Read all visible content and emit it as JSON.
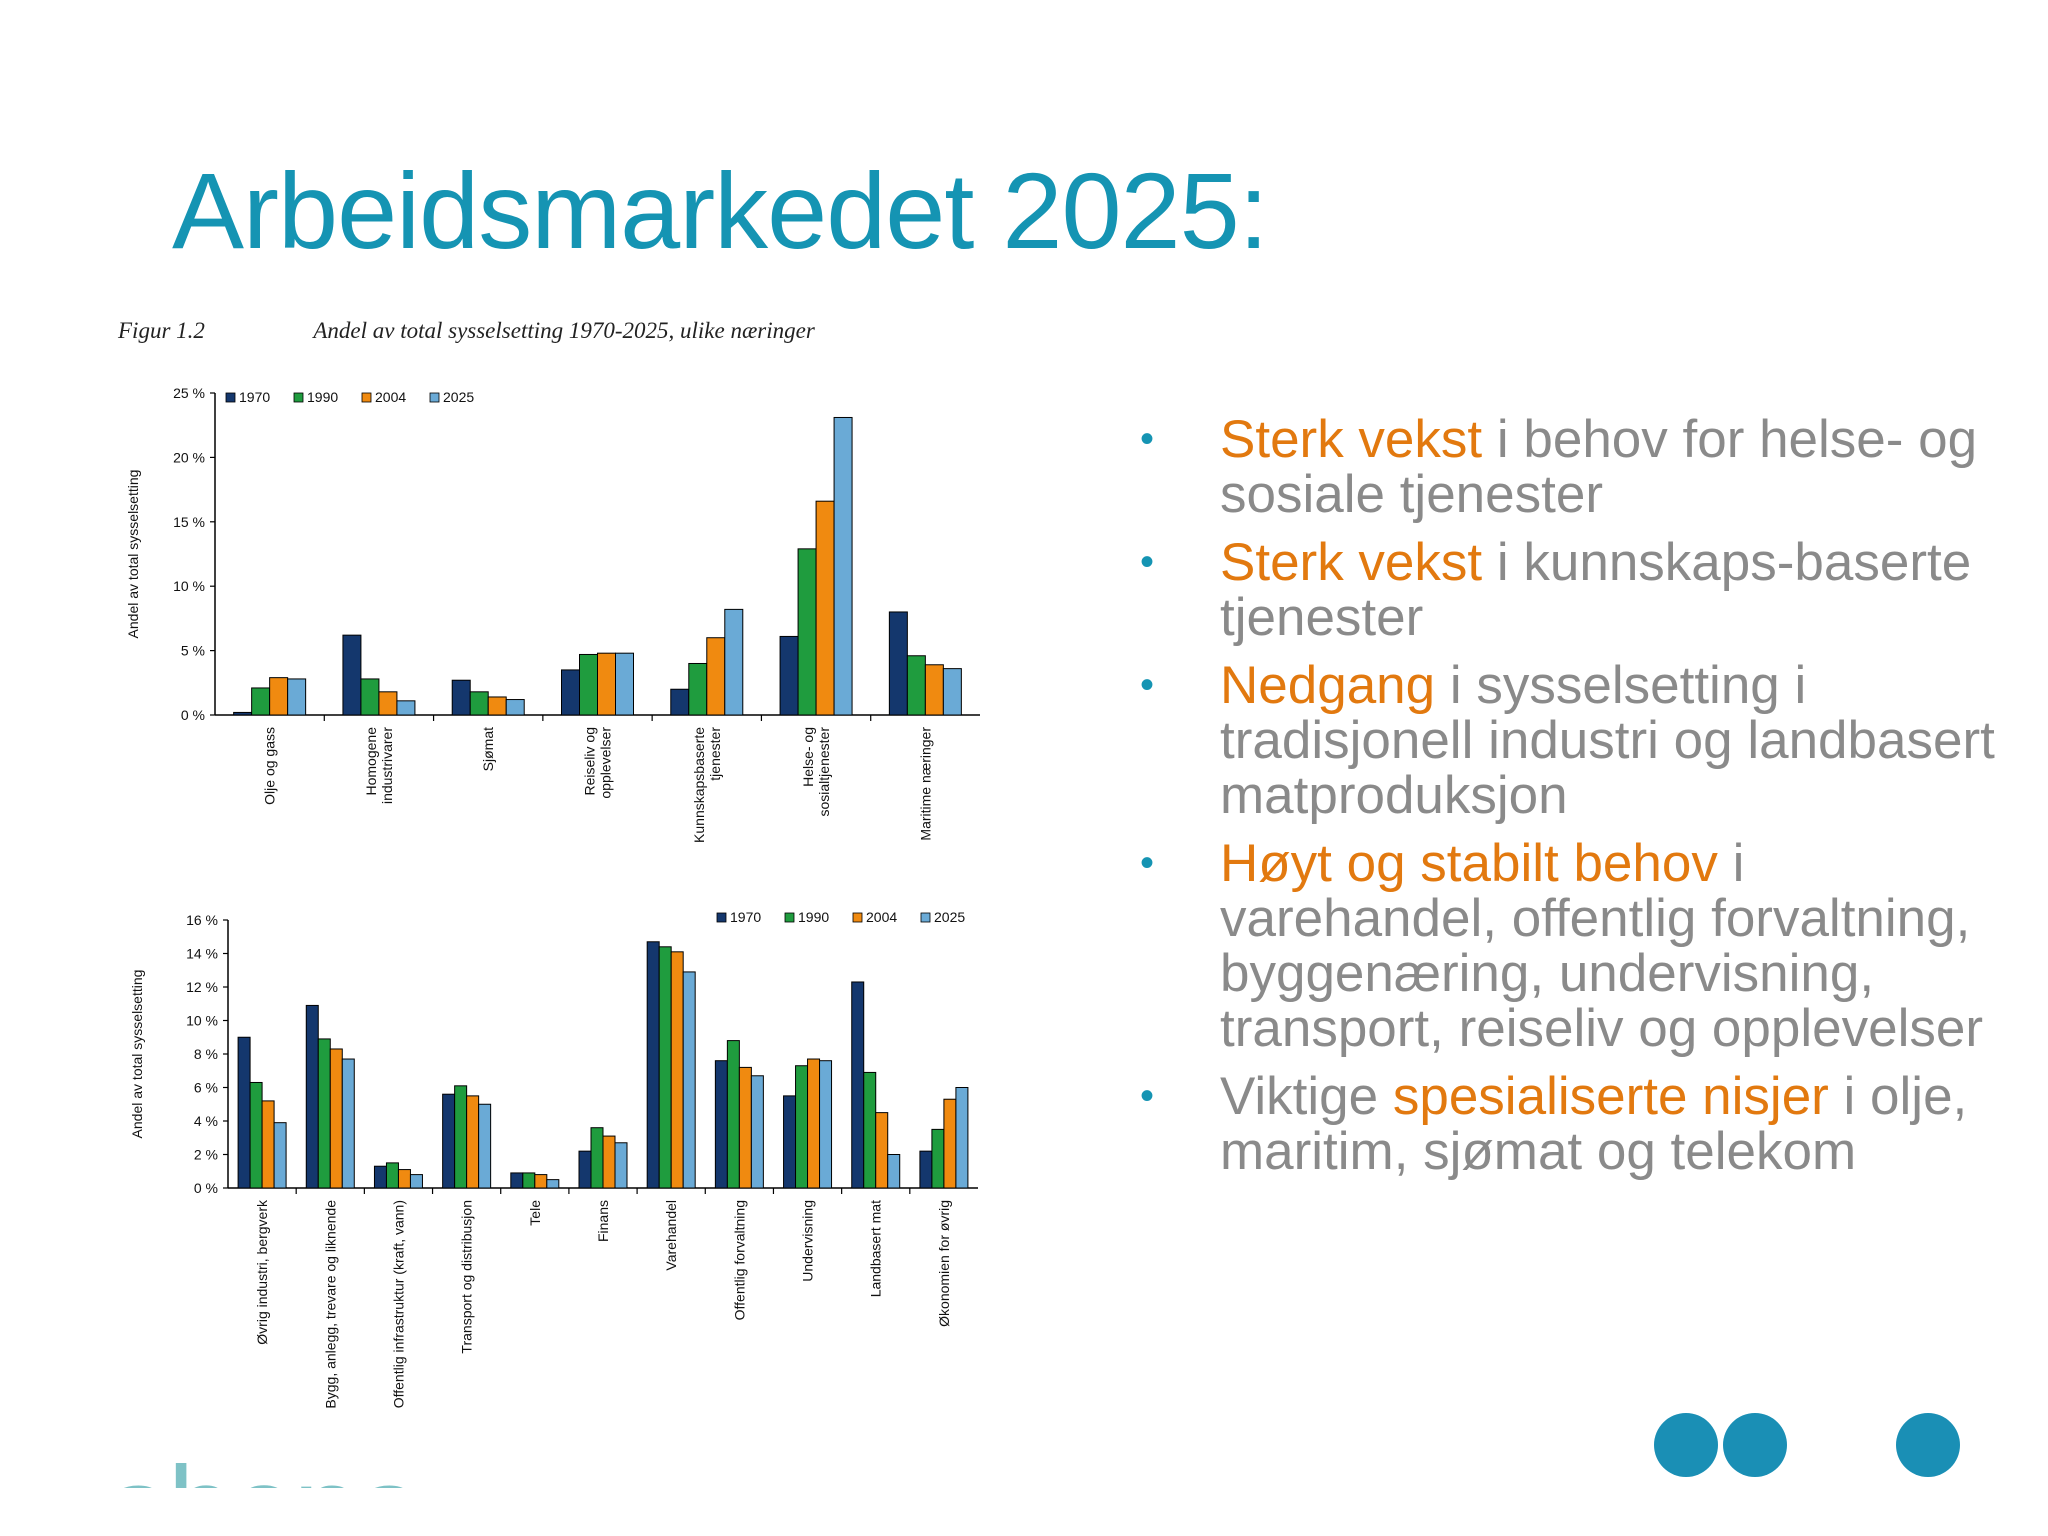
{
  "slide": {
    "title": "Arbeidsmarkedet 2025:",
    "figure_number": "Figur 1.2",
    "figure_caption": "Andel av total sysselsetting 1970-2025, ulike næringer",
    "logo_text": "abena",
    "bullets": [
      {
        "highlight": "Sterk vekst",
        "rest": " i behov for helse- og sosiale tjenester"
      },
      {
        "highlight": "Sterk vekst",
        "rest": " i kunnskaps-baserte tjenester"
      },
      {
        "highlight": "Nedgang",
        "rest": " i sysselsetting i tradisjonell industri og landbasert matproduksjon"
      },
      {
        "highlight": "Høyt og stabilt behov",
        "rest": " i varehandel, offentlig forvaltning, byggenæring, undervisning, transport, reiseliv og opplevelser"
      },
      {
        "pre": "Viktige ",
        "highlight": "spesialiserte nisjer",
        "rest": " i olje, maritim, sjømat og telekom"
      }
    ],
    "colors": {
      "title": "#1594b3",
      "highlight": "#e2790f",
      "body_text": "#8a8a8a",
      "bullet": "#1594b3",
      "circle": "#1a8fb5"
    }
  },
  "chart_data": [
    {
      "type": "bar",
      "ylabel": "Andel av total sysselsetting",
      "ylim": [
        0,
        25
      ],
      "yticks": [
        0,
        5,
        10,
        15,
        20,
        25
      ],
      "ytick_labels": [
        "0 %",
        "5 %",
        "10 %",
        "15 %",
        "20 %",
        "25 %"
      ],
      "legend_position": "top-left",
      "categories": [
        "Olje og gass",
        "Homogene industrivarer",
        "Sjømat",
        "Reiseliv og opplevelser",
        "Kunnskapsbaserte tjenester",
        "Helse- og sosialtjenester",
        "Maritime næringer"
      ],
      "series": [
        {
          "name": "1970",
          "color": "#14376d",
          "values": [
            0.2,
            6.2,
            2.7,
            3.5,
            2.0,
            6.1,
            8.0
          ]
        },
        {
          "name": "1990",
          "color": "#1f9c3e",
          "values": [
            2.1,
            2.8,
            1.8,
            4.7,
            4.0,
            12.9,
            4.6
          ]
        },
        {
          "name": "2004",
          "color": "#f08a10",
          "values": [
            2.9,
            1.8,
            1.4,
            4.8,
            6.0,
            16.6,
            3.9
          ]
        },
        {
          "name": "2025",
          "color": "#6aaad6",
          "values": [
            2.8,
            1.1,
            1.2,
            4.8,
            8.2,
            23.1,
            3.6
          ]
        }
      ]
    },
    {
      "type": "bar",
      "ylabel": "Andel av total sysselsetting",
      "ylim": [
        0,
        16
      ],
      "yticks": [
        0,
        2,
        4,
        6,
        8,
        10,
        12,
        14,
        16
      ],
      "ytick_labels": [
        "0 %",
        "2 %",
        "4 %",
        "6 %",
        "8 %",
        "10 %",
        "12 %",
        "14 %",
        "16 %"
      ],
      "legend_position": "top-right",
      "categories": [
        "Øvrig industri, bergverk",
        "Bygg, anlegg, trevare og liknende",
        "Offentlig infrastruktur (kraft, vann)",
        "Transport og distribusjon",
        "Tele",
        "Finans",
        "Varehandel",
        "Offentlig forvaltning",
        "Undervisning",
        "Landbasert mat",
        "Økonomien for øvrig"
      ],
      "series": [
        {
          "name": "1970",
          "color": "#14376d",
          "values": [
            9.0,
            10.9,
            1.3,
            5.6,
            0.9,
            2.2,
            14.7,
            7.6,
            5.5,
            12.3,
            2.2
          ]
        },
        {
          "name": "1990",
          "color": "#1f9c3e",
          "values": [
            6.3,
            8.9,
            1.5,
            6.1,
            0.9,
            3.6,
            14.4,
            8.8,
            7.3,
            6.9,
            3.5
          ]
        },
        {
          "name": "2004",
          "color": "#f08a10",
          "values": [
            5.2,
            8.3,
            1.1,
            5.5,
            0.8,
            3.1,
            14.1,
            7.2,
            7.7,
            4.5,
            5.3
          ]
        },
        {
          "name": "2025",
          "color": "#6aaad6",
          "values": [
            3.9,
            7.7,
            0.8,
            5.0,
            0.5,
            2.7,
            12.9,
            6.7,
            7.6,
            2.0,
            6.0
          ]
        }
      ]
    }
  ]
}
